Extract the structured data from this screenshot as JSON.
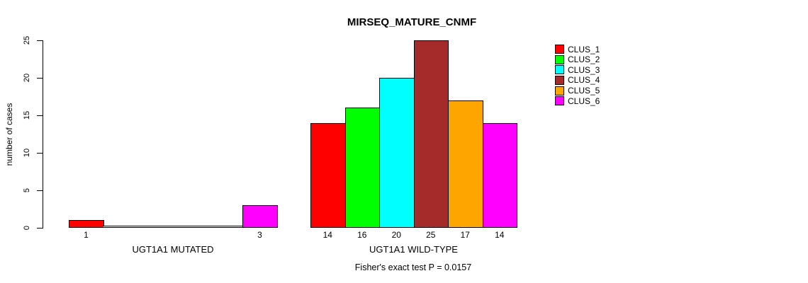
{
  "chart_data": {
    "type": "bar",
    "title": "MIRSEQ_MATURE_CNMF",
    "xlabel": "",
    "ylabel": "number of cases",
    "ylim": [
      0,
      25
    ],
    "yticks": [
      0,
      5,
      10,
      15,
      20,
      25
    ],
    "grid": false,
    "background": "#ffffff",
    "annotation": "Fisher's exact test P = 0.0157",
    "legend": {
      "position": "right",
      "entries": [
        {
          "label": "CLUS_1",
          "color": "#ff0000"
        },
        {
          "label": "CLUS_2",
          "color": "#00ff00"
        },
        {
          "label": "CLUS_3",
          "color": "#00ffff"
        },
        {
          "label": "CLUS_4",
          "color": "#a52a2a"
        },
        {
          "label": "CLUS_5",
          "color": "#ffa500"
        },
        {
          "label": "CLUS_6",
          "color": "#ff00ff"
        }
      ]
    },
    "groups": [
      {
        "label": "UGT1A1 MUTATED",
        "bars": [
          {
            "cluster": "CLUS_1",
            "value": 1,
            "color": "#ff0000"
          },
          {
            "cluster": "CLUS_2",
            "value": 0,
            "color": "#00ff00"
          },
          {
            "cluster": "CLUS_3",
            "value": 0,
            "color": "#00ffff"
          },
          {
            "cluster": "CLUS_4",
            "value": 0,
            "color": "#a52a2a"
          },
          {
            "cluster": "CLUS_5",
            "value": 0,
            "color": "#ffa500"
          },
          {
            "cluster": "CLUS_6",
            "value": 3,
            "color": "#ff00ff"
          }
        ]
      },
      {
        "label": "UGT1A1 WILD-TYPE",
        "bars": [
          {
            "cluster": "CLUS_1",
            "value": 14,
            "color": "#ff0000"
          },
          {
            "cluster": "CLUS_2",
            "value": 16,
            "color": "#00ff00"
          },
          {
            "cluster": "CLUS_3",
            "value": 20,
            "color": "#00ffff"
          },
          {
            "cluster": "CLUS_4",
            "value": 25,
            "color": "#a52a2a"
          },
          {
            "cluster": "CLUS_5",
            "value": 17,
            "color": "#ffa500"
          },
          {
            "cluster": "CLUS_6",
            "value": 14,
            "color": "#ff00ff"
          }
        ]
      }
    ]
  }
}
